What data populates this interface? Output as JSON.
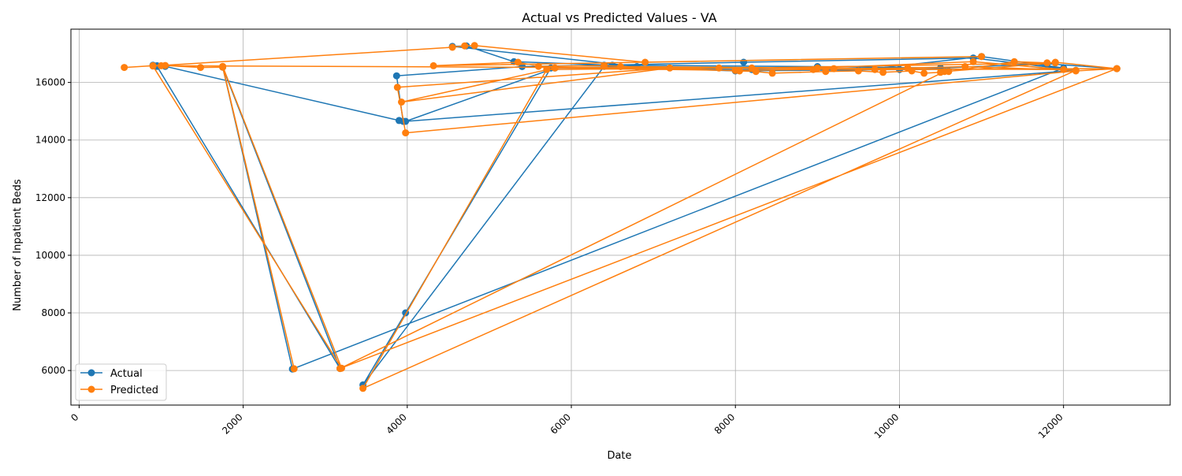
{
  "chart_data": {
    "type": "line",
    "title": "Actual vs Predicted Values - VA",
    "xlabel": "Date",
    "ylabel": "Number of Inpatient Beds",
    "xlim": [
      -100,
      13300
    ],
    "ylim": [
      4800,
      17850
    ],
    "xticks": [
      0,
      2000,
      4000,
      6000,
      8000,
      10000,
      12000
    ],
    "yticks": [
      6000,
      8000,
      10000,
      12000,
      14000,
      16000
    ],
    "grid": true,
    "legend_position": "lower-left",
    "series": [
      {
        "name": "Actual",
        "color": "#1f77b4",
        "marker": "circle",
        "points": [
          [
            900,
            16600
          ],
          [
            950,
            16580
          ],
          [
            1050,
            16560
          ],
          [
            3900,
            14680
          ],
          [
            3950,
            14650
          ],
          [
            3870,
            16230
          ],
          [
            5400,
            16550
          ],
          [
            6400,
            16600
          ],
          [
            8100,
            16700
          ],
          [
            10900,
            16850
          ],
          [
            12150,
            16420
          ],
          [
            3980,
            14650
          ],
          [
            5800,
            16500
          ],
          [
            6800,
            16550
          ],
          [
            4550,
            17250
          ],
          [
            4720,
            17270
          ],
          [
            5300,
            16720
          ],
          [
            6500,
            16600
          ],
          [
            9000,
            16550
          ],
          [
            10500,
            16500
          ],
          [
            11800,
            16650
          ],
          [
            12650,
            16480
          ],
          [
            10000,
            16450
          ],
          [
            8000,
            16400
          ],
          [
            6400,
            16560
          ],
          [
            3460,
            5500
          ],
          [
            3980,
            8000
          ],
          [
            5750,
            16500
          ],
          [
            8200,
            16450
          ],
          [
            9500,
            16420
          ],
          [
            11000,
            16900
          ],
          [
            12000,
            16500
          ],
          [
            2600,
            6050
          ],
          [
            1750,
            16530
          ],
          [
            3180,
            6070
          ],
          [
            950,
            16560
          ]
        ]
      },
      {
        "name": "Predicted",
        "color": "#ff7f0e",
        "marker": "circle",
        "points": [
          [
            550,
            16520
          ],
          [
            900,
            16580
          ],
          [
            1050,
            16590
          ],
          [
            1480,
            16520
          ],
          [
            1750,
            16530
          ],
          [
            2620,
            6060
          ],
          [
            1750,
            16560
          ],
          [
            3200,
            6080
          ],
          [
            900,
            16570
          ],
          [
            4550,
            17220
          ],
          [
            4700,
            17270
          ],
          [
            4820,
            17280
          ],
          [
            6900,
            16700
          ],
          [
            11000,
            16900
          ],
          [
            4320,
            16580
          ],
          [
            5350,
            16700
          ],
          [
            5600,
            16560
          ],
          [
            6400,
            16580
          ],
          [
            8050,
            16400
          ],
          [
            8250,
            16380
          ],
          [
            8450,
            16320
          ],
          [
            9100,
            16380
          ],
          [
            9500,
            16400
          ],
          [
            9800,
            16350
          ],
          [
            10150,
            16400
          ],
          [
            10300,
            16320
          ],
          [
            10500,
            16350
          ],
          [
            10600,
            16380
          ],
          [
            11400,
            16720
          ],
          [
            11800,
            16680
          ],
          [
            11900,
            16700
          ],
          [
            12650,
            16480
          ],
          [
            12150,
            16400
          ],
          [
            3980,
            14250
          ],
          [
            3880,
            15830
          ],
          [
            7200,
            16500
          ],
          [
            3930,
            15320
          ],
          [
            5800,
            16500
          ],
          [
            8000,
            16420
          ],
          [
            8950,
            16450
          ],
          [
            9200,
            16480
          ],
          [
            10100,
            16500
          ],
          [
            10800,
            16550
          ],
          [
            12150,
            16420
          ],
          [
            3460,
            5380
          ],
          [
            5700,
            16450
          ],
          [
            7800,
            16500
          ],
          [
            9700,
            16450
          ],
          [
            12650,
            16480
          ],
          [
            3180,
            6070
          ],
          [
            10550,
            16380
          ],
          [
            11900,
            16680
          ],
          [
            8200,
            16500
          ],
          [
            6600,
            16550
          ],
          [
            9000,
            16500
          ],
          [
            10900,
            16720
          ],
          [
            12000,
            16450
          ],
          [
            1000,
            16580
          ]
        ]
      }
    ]
  }
}
